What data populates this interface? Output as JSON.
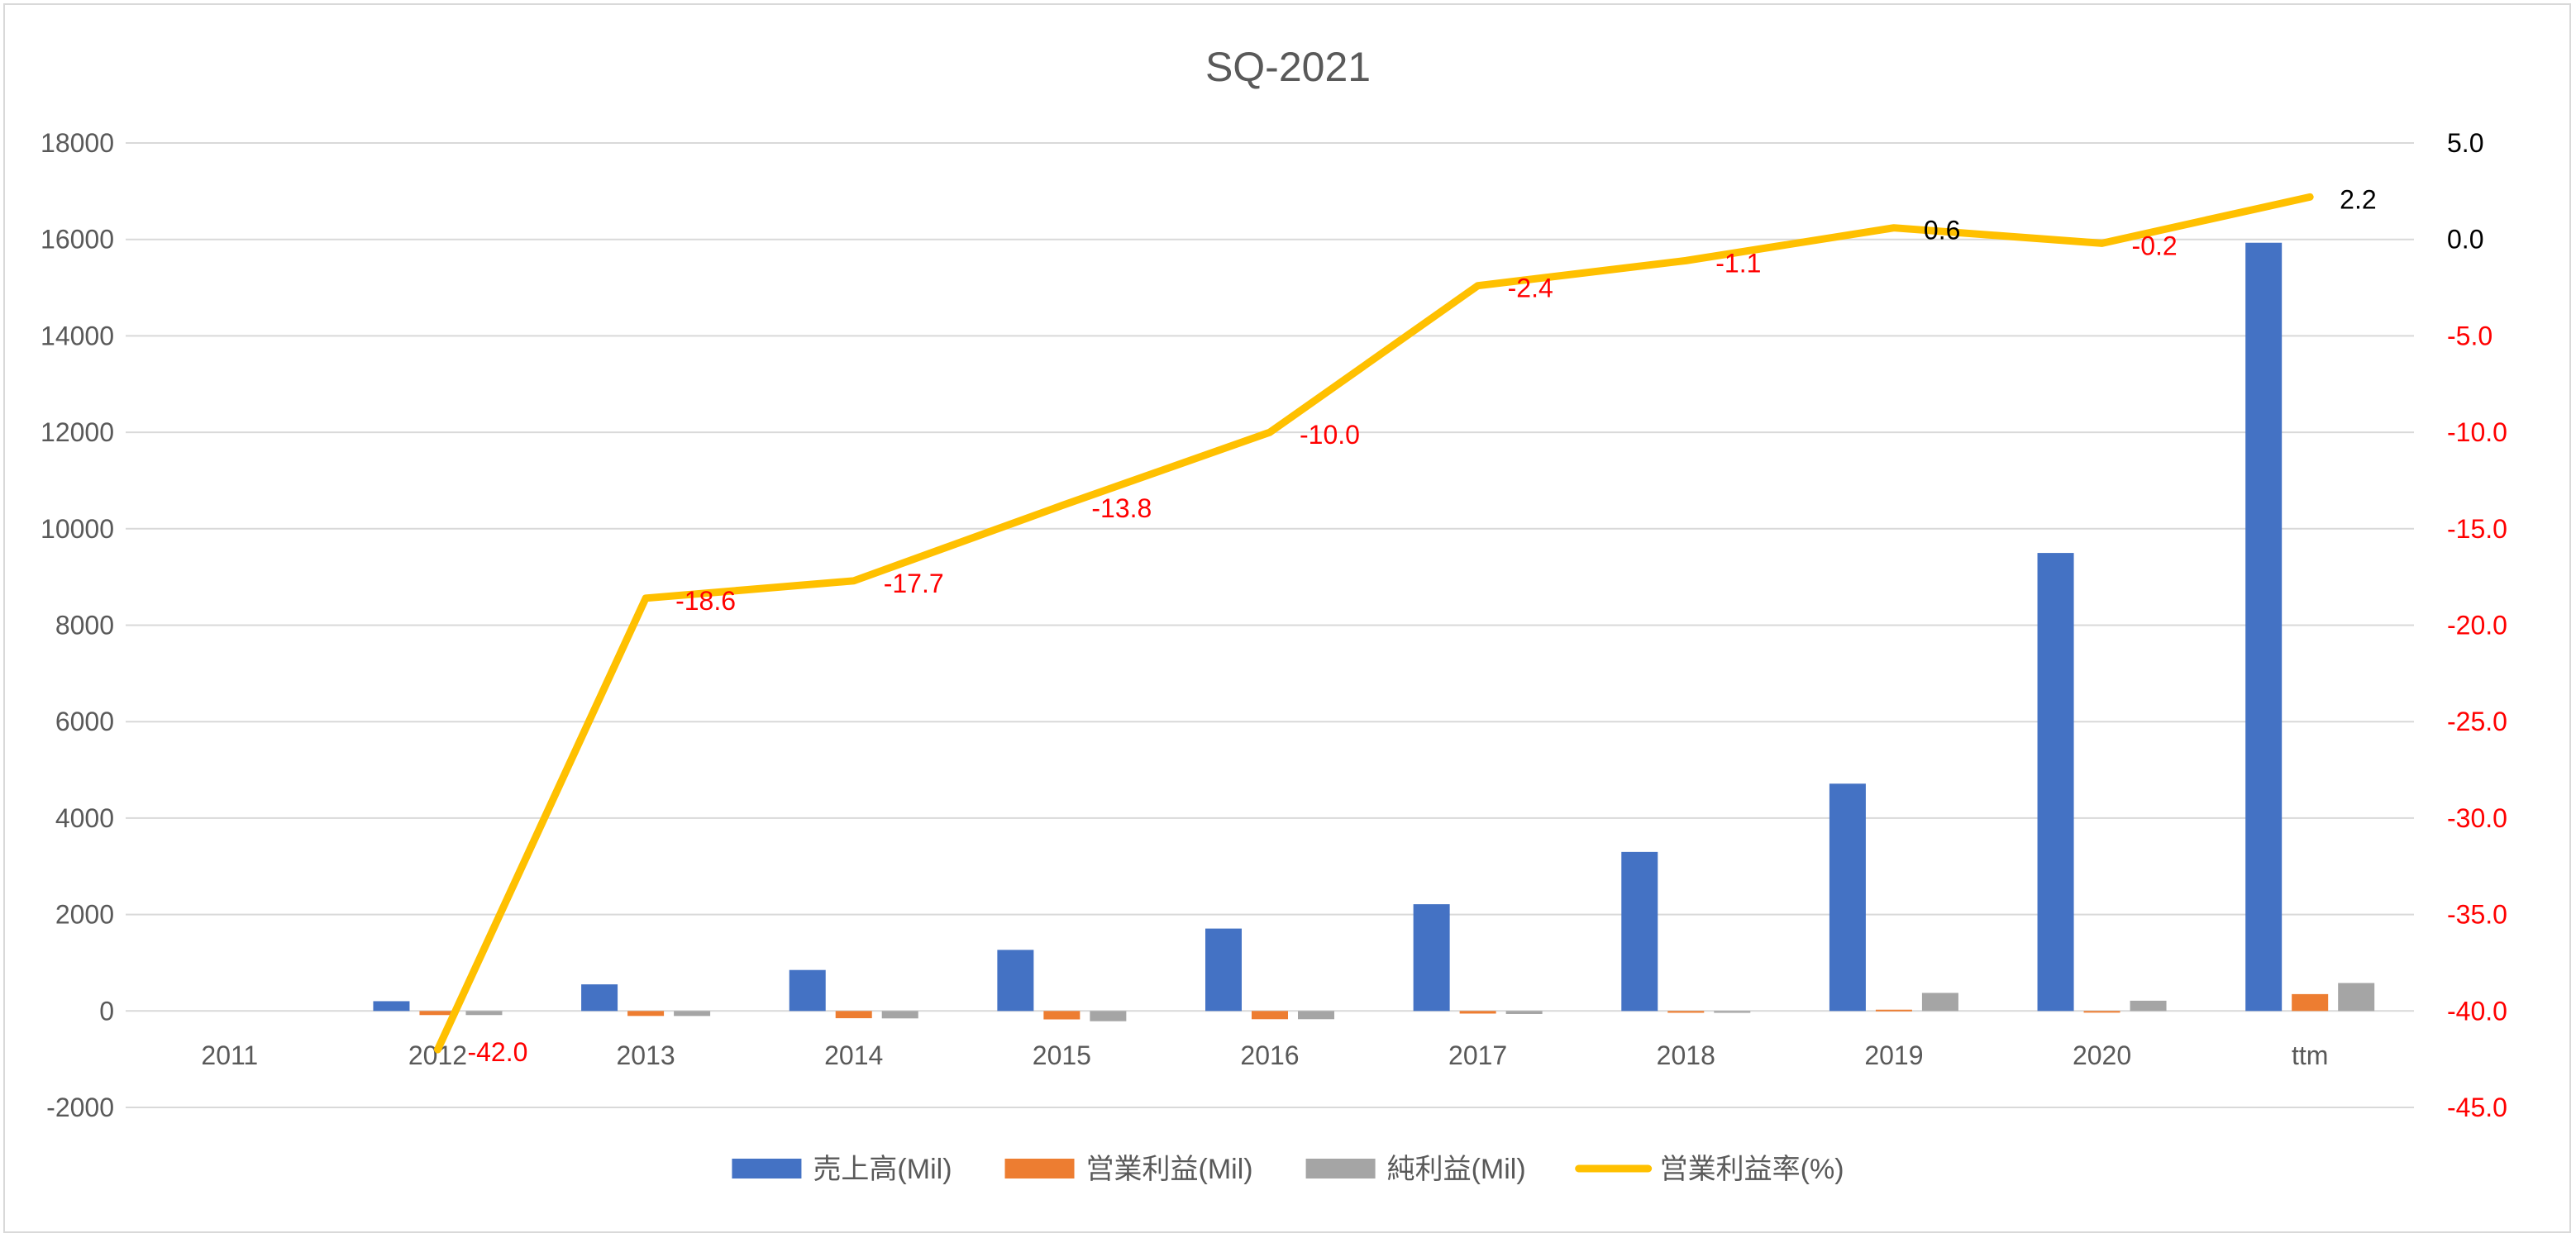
{
  "chart_data": {
    "type": "bar",
    "title": "SQ-2021",
    "categories": [
      "2011",
      "2012",
      "2013",
      "2014",
      "2015",
      "2016",
      "2017",
      "2018",
      "2019",
      "2020",
      "ttm"
    ],
    "series": [
      {
        "name": "売上高(Mil)",
        "type": "bar",
        "axis": "left",
        "color": "#4472C4",
        "values": [
          0,
          203,
          552,
          850,
          1267,
          1709,
          2214,
          3298,
          4714,
          9498,
          15931
        ]
      },
      {
        "name": "営業利益(Mil)",
        "type": "bar",
        "axis": "left",
        "color": "#ED7D31",
        "values": [
          0,
          -85,
          -103,
          -150,
          -175,
          -171,
          -54,
          -37,
          27,
          -21,
          350
        ]
      },
      {
        "name": "純利益(Mil)",
        "type": "bar",
        "axis": "left",
        "color": "#A5A5A5",
        "values": [
          0,
          -85,
          -104,
          -154,
          -212,
          -171,
          -63,
          -38,
          375,
          213,
          580
        ]
      },
      {
        "name": "営業利益率(%)",
        "type": "line",
        "axis": "right",
        "color": "#FFC000",
        "values": [
          null,
          -42.0,
          -18.6,
          -17.7,
          -13.8,
          -10.0,
          -2.4,
          -1.1,
          0.6,
          -0.2,
          2.2
        ],
        "labels": [
          "",
          "-42.0",
          "-18.6",
          "-17.7",
          "-13.8",
          "-10.0",
          "-2.4",
          "-1.1",
          "0.6",
          "-0.2",
          "2.2"
        ]
      }
    ],
    "y_left": {
      "range": [
        -2000,
        18000
      ],
      "ticks": [
        -2000,
        0,
        2000,
        4000,
        6000,
        8000,
        10000,
        12000,
        14000,
        16000,
        18000
      ],
      "tick_labels": [
        "-2000",
        "0",
        "2000",
        "4000",
        "6000",
        "8000",
        "10000",
        "12000",
        "14000",
        "16000",
        "18000"
      ]
    },
    "y_right": {
      "range": [
        -45,
        5
      ],
      "ticks": [
        -45,
        -40,
        -35,
        -30,
        -25,
        -20,
        -15,
        -10,
        -5,
        0,
        5
      ],
      "tick_labels": [
        "-45.0",
        "-40.0",
        "-35.0",
        "-30.0",
        "-25.0",
        "-20.0",
        "-15.0",
        "-10.0",
        "-5.0",
        "0.0",
        "5.0"
      ]
    },
    "grid": true,
    "legend_position": "bottom",
    "negative_label_color": "#FF0000",
    "positive_label_color": "#000000"
  }
}
